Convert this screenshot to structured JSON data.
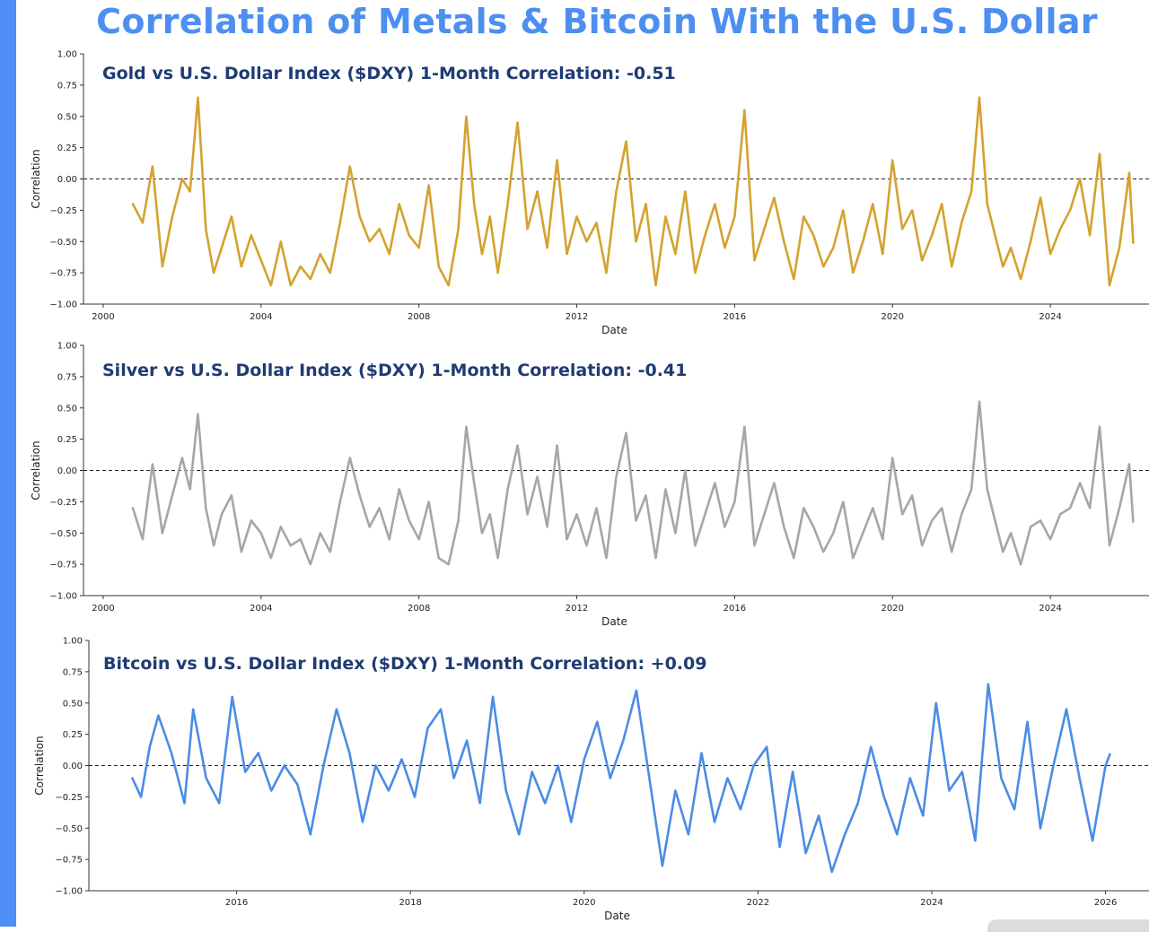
{
  "title": "Correlation of Metals & Bitcoin With the U.S. Dollar",
  "colors": {
    "gold": "#d4a22f",
    "silver": "#a3a7ab",
    "bitcoin": "#4a8ce6",
    "title": "#4d8ff0",
    "panel_title": "#1f3b73"
  },
  "chart_data": [
    {
      "type": "line",
      "title": "Gold vs U.S. Dollar Index ($DXY) 1-Month Correlation: -0.51",
      "xlabel": "Date",
      "ylabel": "Correlation",
      "xlim": [
        1999.5,
        2026.5
      ],
      "ylim": [
        -1.0,
        1.0
      ],
      "xticks": [
        2000,
        2004,
        2008,
        2012,
        2016,
        2020,
        2024
      ],
      "xtick_labels": [
        "2000",
        "2004",
        "2008",
        "2012",
        "2016",
        "2020",
        "2024"
      ],
      "yticks": [
        1.0,
        0.75,
        0.5,
        0.25,
        0.0,
        -0.25,
        -0.5,
        -0.75,
        -1.0
      ],
      "ytick_labels": [
        "1.00",
        "0.75",
        "0.50",
        "0.25",
        "0.00",
        "−0.25",
        "−0.50",
        "−0.75",
        "−1.00"
      ],
      "reference_line": 0.0,
      "current_value": -0.51,
      "series": [
        {
          "name": "Gold",
          "color": "#d4a22f",
          "x": [
            2000.75,
            2001.0,
            2001.25,
            2001.5,
            2001.75,
            2002.0,
            2002.2,
            2002.4,
            2002.6,
            2002.8,
            2003.0,
            2003.25,
            2003.5,
            2003.75,
            2004.0,
            2004.25,
            2004.5,
            2004.75,
            2005.0,
            2005.25,
            2005.5,
            2005.75,
            2006.0,
            2006.25,
            2006.5,
            2006.75,
            2007.0,
            2007.25,
            2007.5,
            2007.75,
            2008.0,
            2008.25,
            2008.5,
            2008.75,
            2009.0,
            2009.2,
            2009.4,
            2009.6,
            2009.8,
            2010.0,
            2010.25,
            2010.5,
            2010.75,
            2011.0,
            2011.25,
            2011.5,
            2011.75,
            2012.0,
            2012.25,
            2012.5,
            2012.75,
            2013.0,
            2013.25,
            2013.5,
            2013.75,
            2014.0,
            2014.25,
            2014.5,
            2014.75,
            2015.0,
            2015.25,
            2015.5,
            2015.75,
            2016.0,
            2016.25,
            2016.5,
            2016.75,
            2017.0,
            2017.25,
            2017.5,
            2017.75,
            2018.0,
            2018.25,
            2018.5,
            2018.75,
            2019.0,
            2019.25,
            2019.5,
            2019.75,
            2020.0,
            2020.25,
            2020.5,
            2020.75,
            2021.0,
            2021.25,
            2021.5,
            2021.75,
            2022.0,
            2022.2,
            2022.4,
            2022.6,
            2022.8,
            2023.0,
            2023.25,
            2023.5,
            2023.75,
            2024.0,
            2024.25,
            2024.5,
            2024.75,
            2025.0,
            2025.25,
            2025.5,
            2025.75,
            2026.0,
            2026.1
          ],
          "values": [
            -0.2,
            -0.35,
            0.1,
            -0.7,
            -0.3,
            0.0,
            -0.1,
            0.65,
            -0.4,
            -0.75,
            -0.55,
            -0.3,
            -0.7,
            -0.45,
            -0.65,
            -0.85,
            -0.5,
            -0.85,
            -0.7,
            -0.8,
            -0.6,
            -0.75,
            -0.35,
            0.1,
            -0.3,
            -0.5,
            -0.4,
            -0.6,
            -0.2,
            -0.45,
            -0.55,
            -0.05,
            -0.7,
            -0.85,
            -0.4,
            0.5,
            -0.2,
            -0.6,
            -0.3,
            -0.75,
            -0.2,
            0.45,
            -0.4,
            -0.1,
            -0.55,
            0.15,
            -0.6,
            -0.3,
            -0.5,
            -0.35,
            -0.75,
            -0.1,
            0.3,
            -0.5,
            -0.2,
            -0.85,
            -0.3,
            -0.6,
            -0.1,
            -0.75,
            -0.45,
            -0.2,
            -0.55,
            -0.3,
            0.55,
            -0.65,
            -0.4,
            -0.15,
            -0.5,
            -0.8,
            -0.3,
            -0.45,
            -0.7,
            -0.55,
            -0.25,
            -0.75,
            -0.5,
            -0.2,
            -0.6,
            0.15,
            -0.4,
            -0.25,
            -0.65,
            -0.45,
            -0.2,
            -0.7,
            -0.35,
            -0.1,
            0.65,
            -0.2,
            -0.45,
            -0.7,
            -0.55,
            -0.8,
            -0.5,
            -0.15,
            -0.6,
            -0.4,
            -0.25,
            0.0,
            -0.45,
            0.2,
            -0.85,
            -0.55,
            0.05,
            -0.51
          ]
        }
      ]
    },
    {
      "type": "line",
      "title": "Silver vs U.S. Dollar Index ($DXY) 1-Month Correlation: -0.41",
      "xlabel": "Date",
      "ylabel": "Correlation",
      "xlim": [
        1999.5,
        2026.5
      ],
      "ylim": [
        -1.0,
        1.0
      ],
      "xticks": [
        2000,
        2004,
        2008,
        2012,
        2016,
        2020,
        2024
      ],
      "xtick_labels": [
        "2000",
        "2004",
        "2008",
        "2012",
        "2016",
        "2020",
        "2024"
      ],
      "yticks": [
        1.0,
        0.75,
        0.5,
        0.25,
        0.0,
        -0.25,
        -0.5,
        -0.75,
        -1.0
      ],
      "ytick_labels": [
        "1.00",
        "0.75",
        "0.50",
        "0.25",
        "0.00",
        "−0.25",
        "−0.50",
        "−0.75",
        "−1.00"
      ],
      "reference_line": 0.0,
      "current_value": -0.41,
      "series": [
        {
          "name": "Silver",
          "color": "#a3a7ab",
          "x": [
            2000.75,
            2001.0,
            2001.25,
            2001.5,
            2001.75,
            2002.0,
            2002.2,
            2002.4,
            2002.6,
            2002.8,
            2003.0,
            2003.25,
            2003.5,
            2003.75,
            2004.0,
            2004.25,
            2004.5,
            2004.75,
            2005.0,
            2005.25,
            2005.5,
            2005.75,
            2006.0,
            2006.25,
            2006.5,
            2006.75,
            2007.0,
            2007.25,
            2007.5,
            2007.75,
            2008.0,
            2008.25,
            2008.5,
            2008.75,
            2009.0,
            2009.2,
            2009.4,
            2009.6,
            2009.8,
            2010.0,
            2010.25,
            2010.5,
            2010.75,
            2011.0,
            2011.25,
            2011.5,
            2011.75,
            2012.0,
            2012.25,
            2012.5,
            2012.75,
            2013.0,
            2013.25,
            2013.5,
            2013.75,
            2014.0,
            2014.25,
            2014.5,
            2014.75,
            2015.0,
            2015.25,
            2015.5,
            2015.75,
            2016.0,
            2016.25,
            2016.5,
            2016.75,
            2017.0,
            2017.25,
            2017.5,
            2017.75,
            2018.0,
            2018.25,
            2018.5,
            2018.75,
            2019.0,
            2019.25,
            2019.5,
            2019.75,
            2020.0,
            2020.25,
            2020.5,
            2020.75,
            2021.0,
            2021.25,
            2021.5,
            2021.75,
            2022.0,
            2022.2,
            2022.4,
            2022.6,
            2022.8,
            2023.0,
            2023.25,
            2023.5,
            2023.75,
            2024.0,
            2024.25,
            2024.5,
            2024.75,
            2025.0,
            2025.25,
            2025.5,
            2025.75,
            2026.0,
            2026.1
          ],
          "values": [
            -0.3,
            -0.55,
            0.05,
            -0.5,
            -0.2,
            0.1,
            -0.15,
            0.45,
            -0.3,
            -0.6,
            -0.35,
            -0.2,
            -0.65,
            -0.4,
            -0.5,
            -0.7,
            -0.45,
            -0.6,
            -0.55,
            -0.75,
            -0.5,
            -0.65,
            -0.25,
            0.1,
            -0.2,
            -0.45,
            -0.3,
            -0.55,
            -0.15,
            -0.4,
            -0.55,
            -0.25,
            -0.7,
            -0.75,
            -0.4,
            0.35,
            -0.1,
            -0.5,
            -0.35,
            -0.7,
            -0.15,
            0.2,
            -0.35,
            -0.05,
            -0.45,
            0.2,
            -0.55,
            -0.35,
            -0.6,
            -0.3,
            -0.7,
            -0.05,
            0.3,
            -0.4,
            -0.2,
            -0.7,
            -0.15,
            -0.5,
            0.0,
            -0.6,
            -0.35,
            -0.1,
            -0.45,
            -0.25,
            0.35,
            -0.6,
            -0.35,
            -0.1,
            -0.45,
            -0.7,
            -0.3,
            -0.45,
            -0.65,
            -0.5,
            -0.25,
            -0.7,
            -0.5,
            -0.3,
            -0.55,
            0.1,
            -0.35,
            -0.2,
            -0.6,
            -0.4,
            -0.3,
            -0.65,
            -0.35,
            -0.15,
            0.55,
            -0.15,
            -0.4,
            -0.65,
            -0.5,
            -0.75,
            -0.45,
            -0.4,
            -0.55,
            -0.35,
            -0.3,
            -0.1,
            -0.3,
            0.35,
            -0.6,
            -0.3,
            0.05,
            -0.41
          ]
        }
      ]
    },
    {
      "type": "line",
      "title": "Bitcoin vs U.S. Dollar Index ($DXY) 1-Month Correlation: +0.09",
      "xlabel": "Date",
      "ylabel": "Correlation",
      "xlim": [
        2014.3,
        2026.5
      ],
      "ylim": [
        -1.0,
        1.0
      ],
      "xticks": [
        2016,
        2018,
        2020,
        2022,
        2024,
        2026
      ],
      "xtick_labels": [
        "2016",
        "2018",
        "2020",
        "2022",
        "2024",
        "2026"
      ],
      "yticks": [
        1.0,
        0.75,
        0.5,
        0.25,
        0.0,
        -0.25,
        -0.5,
        -0.75,
        -1.0
      ],
      "ytick_labels": [
        "1.00",
        "0.75",
        "0.50",
        "0.25",
        "0.00",
        "−0.25",
        "−0.50",
        "−0.75",
        "−1.00"
      ],
      "reference_line": 0.0,
      "current_value": 0.09,
      "series": [
        {
          "name": "Bitcoin",
          "color": "#4a8ce6",
          "x": [
            2014.8,
            2014.9,
            2015.0,
            2015.1,
            2015.25,
            2015.4,
            2015.5,
            2015.65,
            2015.8,
            2015.95,
            2016.1,
            2016.25,
            2016.4,
            2016.55,
            2016.7,
            2016.85,
            2017.0,
            2017.15,
            2017.3,
            2017.45,
            2017.6,
            2017.75,
            2017.9,
            2018.05,
            2018.2,
            2018.35,
            2018.5,
            2018.65,
            2018.8,
            2018.95,
            2019.1,
            2019.25,
            2019.4,
            2019.55,
            2019.7,
            2019.85,
            2020.0,
            2020.15,
            2020.3,
            2020.45,
            2020.6,
            2020.75,
            2020.9,
            2021.05,
            2021.2,
            2021.35,
            2021.5,
            2021.65,
            2021.8,
            2021.95,
            2022.1,
            2022.25,
            2022.4,
            2022.55,
            2022.7,
            2022.85,
            2023.0,
            2023.15,
            2023.3,
            2023.45,
            2023.6,
            2023.75,
            2023.9,
            2024.05,
            2024.2,
            2024.35,
            2024.5,
            2024.65,
            2024.8,
            2024.95,
            2025.1,
            2025.25,
            2025.4,
            2025.55,
            2025.7,
            2025.85,
            2026.0,
            2026.05
          ],
          "values": [
            -0.1,
            -0.25,
            0.15,
            0.4,
            0.1,
            -0.3,
            0.45,
            -0.1,
            -0.3,
            0.55,
            -0.05,
            0.1,
            -0.2,
            0.0,
            -0.15,
            -0.55,
            0.0,
            0.45,
            0.1,
            -0.45,
            0.0,
            -0.2,
            0.05,
            -0.25,
            0.3,
            0.45,
            -0.1,
            0.2,
            -0.3,
            0.55,
            -0.2,
            -0.55,
            -0.05,
            -0.3,
            0.0,
            -0.45,
            0.05,
            0.35,
            -0.1,
            0.2,
            0.6,
            -0.1,
            -0.8,
            -0.2,
            -0.55,
            0.1,
            -0.45,
            -0.1,
            -0.35,
            0.0,
            0.15,
            -0.65,
            -0.05,
            -0.7,
            -0.4,
            -0.85,
            -0.55,
            -0.3,
            0.15,
            -0.25,
            -0.55,
            -0.1,
            -0.4,
            0.5,
            -0.2,
            -0.05,
            -0.6,
            0.65,
            -0.1,
            -0.35,
            0.35,
            -0.5,
            0.0,
            0.45,
            -0.1,
            -0.6,
            0.0,
            0.09
          ]
        }
      ]
    }
  ]
}
